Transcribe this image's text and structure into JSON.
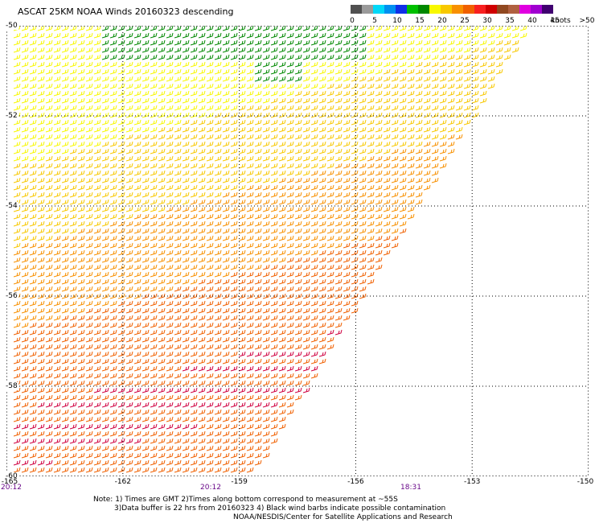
{
  "title": "ASCAT 25KM NOAA Winds 20160323 descending",
  "legend": {
    "units": "knots",
    "colors": [
      "#505050",
      "#9a9a9a",
      "#00d8f8",
      "#0090f0",
      "#1030e8",
      "#00c000",
      "#008800",
      "#f8f800",
      "#f8c800",
      "#f89000",
      "#f06000",
      "#f82020",
      "#d00000",
      "#904820",
      "#b06040",
      "#e000e0",
      "#a000d0",
      "#400070"
    ],
    "labels": [
      "0",
      "5",
      "10",
      "15",
      "20",
      "25",
      "30",
      "35",
      "40",
      "45",
      ">50"
    ]
  },
  "axes": {
    "lat_labels": [
      "-50",
      "-52",
      "-54",
      "-56",
      "-58",
      "-60"
    ],
    "lon_labels": [
      "-165",
      "-162",
      "-159",
      "-156",
      "-153",
      "-150"
    ],
    "lat_range": [
      -50,
      -60
    ],
    "lon_range": [
      -165,
      -150
    ],
    "grid": "dotted"
  },
  "times": [
    "20:12",
    "20:12",
    "18:31"
  ],
  "notes": [
    "Note: 1) Times are GMT 2)Times along bottom correspond to measurement at ~55S",
    "3)Data buffer is 22 hrs from 20160323 4) Black wind barbs indicate possible contamination",
    "NOAA/NESDIS/Center for Satellite Applications and Research"
  ]
}
